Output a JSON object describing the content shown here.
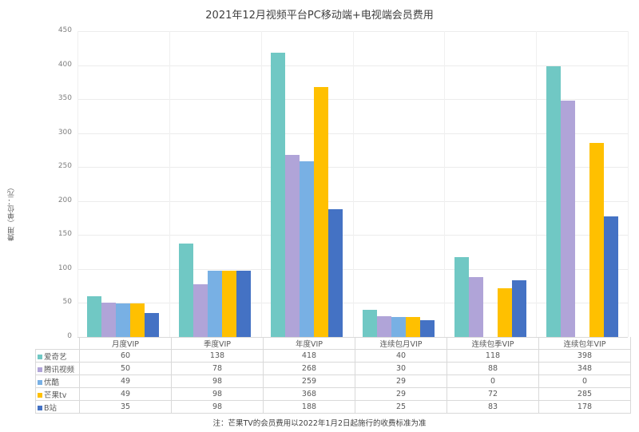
{
  "title": "2021年12月视频平台PC移动端+电视端会员费用",
  "note": "注：芒果TV的会员费用以2022年1月2日起施行的收费标准为准",
  "chart_data": {
    "type": "bar",
    "title": "2021年12月视频平台PC移动端+电视端会员费用",
    "xlabel": "",
    "ylabel": "费用（单位：元）",
    "ylim": [
      0,
      450
    ],
    "yticks": [
      0,
      50,
      100,
      150,
      200,
      250,
      300,
      350,
      400,
      450
    ],
    "grid": true,
    "legend_position": "data-table",
    "categories": [
      "月度VIP",
      "季度VIP",
      "年度VIP",
      "连续包月VIP",
      "连续包季VIP",
      "连续包年VIP"
    ],
    "series": [
      {
        "name": "爱奇艺",
        "color": "#70c8c4",
        "values": [
          60,
          138,
          418,
          40,
          118,
          398
        ]
      },
      {
        "name": "腾讯视频",
        "color": "#b0a4d8",
        "values": [
          50,
          78,
          268,
          30,
          88,
          348
        ]
      },
      {
        "name": "优酷",
        "color": "#78b0e4",
        "values": [
          49,
          98,
          259,
          29,
          0,
          0
        ]
      },
      {
        "name": "芒果tv",
        "color": "#ffc000",
        "values": [
          49,
          98,
          368,
          29,
          72,
          285
        ]
      },
      {
        "name": "B站",
        "color": "#4472c4",
        "values": [
          35,
          98,
          188,
          25,
          83,
          178
        ]
      }
    ]
  }
}
